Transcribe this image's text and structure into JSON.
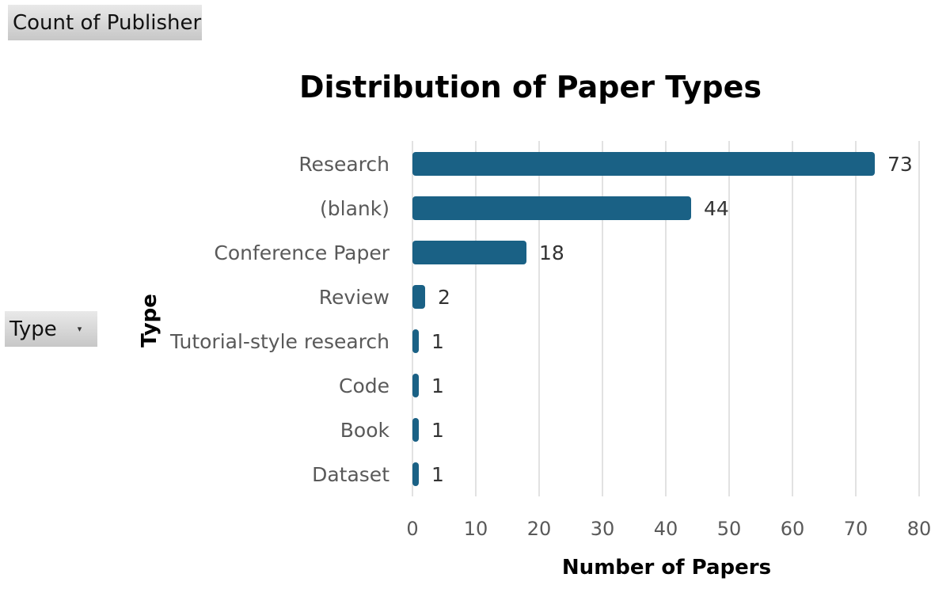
{
  "pivot": {
    "value_field": "Count of Publisher",
    "axis_field": "Type",
    "axis_field_dropdown_icon": "chevron-down-icon"
  },
  "colors": {
    "bar": "#1a6185",
    "grid": "#d9d9d9",
    "label": "#595959",
    "title": "#000000"
  },
  "chart_data": {
    "type": "bar",
    "orientation": "horizontal",
    "title": "Distribution of Paper Types",
    "xlabel": "Number of Papers",
    "ylabel": "Type",
    "categories": [
      "Research",
      "(blank)",
      "Conference Paper",
      "Review",
      "Tutorial-style research",
      "Code",
      "Book",
      "Dataset"
    ],
    "values": [
      73,
      44,
      18,
      2,
      1,
      1,
      1,
      1
    ],
    "data_labels": [
      "73",
      "44",
      "18",
      "2",
      "1",
      "1",
      "1",
      "1"
    ],
    "xlim": [
      0,
      80
    ],
    "xticks": [
      0,
      10,
      20,
      30,
      40,
      50,
      60,
      70,
      80
    ],
    "xtick_labels": [
      "0",
      "10",
      "20",
      "30",
      "40",
      "50",
      "60",
      "70",
      "80"
    ],
    "grid": "vertical",
    "legend": "none"
  }
}
